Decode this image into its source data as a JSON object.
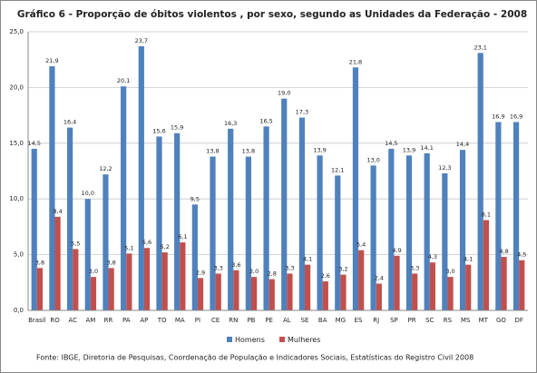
{
  "chart_data": {
    "type": "bar",
    "title": "Gráfico 6 - Proporção de óbitos violentos , por sexo, segundo as Unidades da Federação - 2008",
    "source": "Fonte: IBGE, Diretoria de Pesquisas, Coordenação de População e Indicadores Sociais, Estatísticas do Registro Civil 2008",
    "categories": [
      "Brasil",
      "RO",
      "AC",
      "AM",
      "RR",
      "PA",
      "AP",
      "TO",
      "MA",
      "PI",
      "CE",
      "RN",
      "PB",
      "PE",
      "AL",
      "SE",
      "BA",
      "MG",
      "ES",
      "RJ",
      "SP",
      "PR",
      "SC",
      "RS",
      "MS",
      "MT",
      "GO",
      "DF"
    ],
    "series": [
      {
        "name": "Homens",
        "color": "#4f81bd",
        "values": [
          14.5,
          21.9,
          16.4,
          10.0,
          12.2,
          20.1,
          23.7,
          15.6,
          15.9,
          9.5,
          13.8,
          16.3,
          13.8,
          16.5,
          19.0,
          17.3,
          13.9,
          12.1,
          21.8,
          13.0,
          14.5,
          13.9,
          14.1,
          12.3,
          14.4,
          23.1,
          16.9,
          16.9
        ],
        "value_labels": [
          "14,5",
          "21,9",
          "16,4",
          "10,0",
          "12,2",
          "20,1",
          "23,7",
          "15,6",
          "15,9",
          "9,5",
          "13,8",
          "16,3",
          "13,8",
          "16,5",
          "19,0",
          "17,3",
          "13,9",
          "12,1",
          "21,8",
          "13,0",
          "14,5",
          "13,9",
          "14,1",
          "12,3",
          "14,4",
          "23,1",
          "16,9",
          "16,9"
        ]
      },
      {
        "name": "Mulheres",
        "color": "#c0504d",
        "values": [
          3.8,
          8.4,
          5.5,
          3.0,
          3.8,
          5.1,
          5.6,
          5.2,
          6.1,
          2.9,
          3.3,
          3.6,
          3.0,
          2.8,
          3.3,
          4.1,
          2.6,
          3.2,
          5.4,
          2.4,
          4.9,
          3.3,
          4.3,
          3.0,
          4.1,
          8.1,
          4.8,
          4.5
        ],
        "value_labels": [
          "3,8",
          "8,4",
          "5,5",
          "3,0",
          "3,8",
          "5,1",
          "5,6",
          "5,2",
          "6,1",
          "2,9",
          "3,3",
          "3,6",
          "3,0",
          "2,8",
          "3,3",
          "4,1",
          "2,6",
          "3,2",
          "5,4",
          "2,4",
          "4,9",
          "3,3",
          "4,3",
          "3,0",
          "4,1",
          "8,1",
          "4,8",
          "4,5"
        ]
      }
    ],
    "ylim": [
      0,
      25
    ],
    "yticks": [
      {
        "value": 0,
        "label": "0,0"
      },
      {
        "value": 5,
        "label": "5,0"
      },
      {
        "value": 10,
        "label": "10,0"
      },
      {
        "value": 15,
        "label": "15,0"
      },
      {
        "value": 20,
        "label": "20,0"
      },
      {
        "value": 25,
        "label": "25,0"
      }
    ],
    "grid": true
  }
}
